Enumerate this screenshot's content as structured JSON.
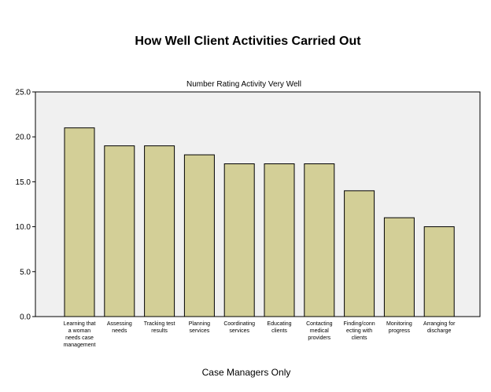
{
  "chart_data": {
    "type": "bar",
    "title": "How Well Client Activities Carried Out",
    "subtitle": "Number Rating Activity Very Well",
    "footer": "Case Managers Only",
    "xlabel": "",
    "ylabel": "",
    "ylim": [
      0,
      25
    ],
    "yticks": [
      "0.0",
      "5.0",
      "10.0",
      "15.0",
      "20.0",
      "25.0"
    ],
    "ytick_values": [
      0,
      5,
      10,
      15,
      20,
      25
    ],
    "grid": false,
    "legend": "none",
    "colors": {
      "bar_fill": "#d3cf97",
      "bar_stroke": "#000000",
      "plot_bg": "#f0f0f0"
    },
    "categories": [
      [
        "Learning that",
        "a woman",
        "needs case",
        "management"
      ],
      [
        "Assessing",
        "needs"
      ],
      [
        "Tracking test",
        "results"
      ],
      [
        "Planning",
        "services"
      ],
      [
        "Coordinating",
        "services"
      ],
      [
        "Educating",
        "clients"
      ],
      [
        "Contacting",
        "medical",
        "providers"
      ],
      [
        "Finding/conn",
        "ecting with",
        "clients"
      ],
      [
        "Monitoring",
        "progress"
      ],
      [
        "Arranging for",
        "discharge"
      ]
    ],
    "values": [
      21,
      19,
      19,
      18,
      17,
      17,
      17,
      14,
      11,
      10
    ]
  }
}
